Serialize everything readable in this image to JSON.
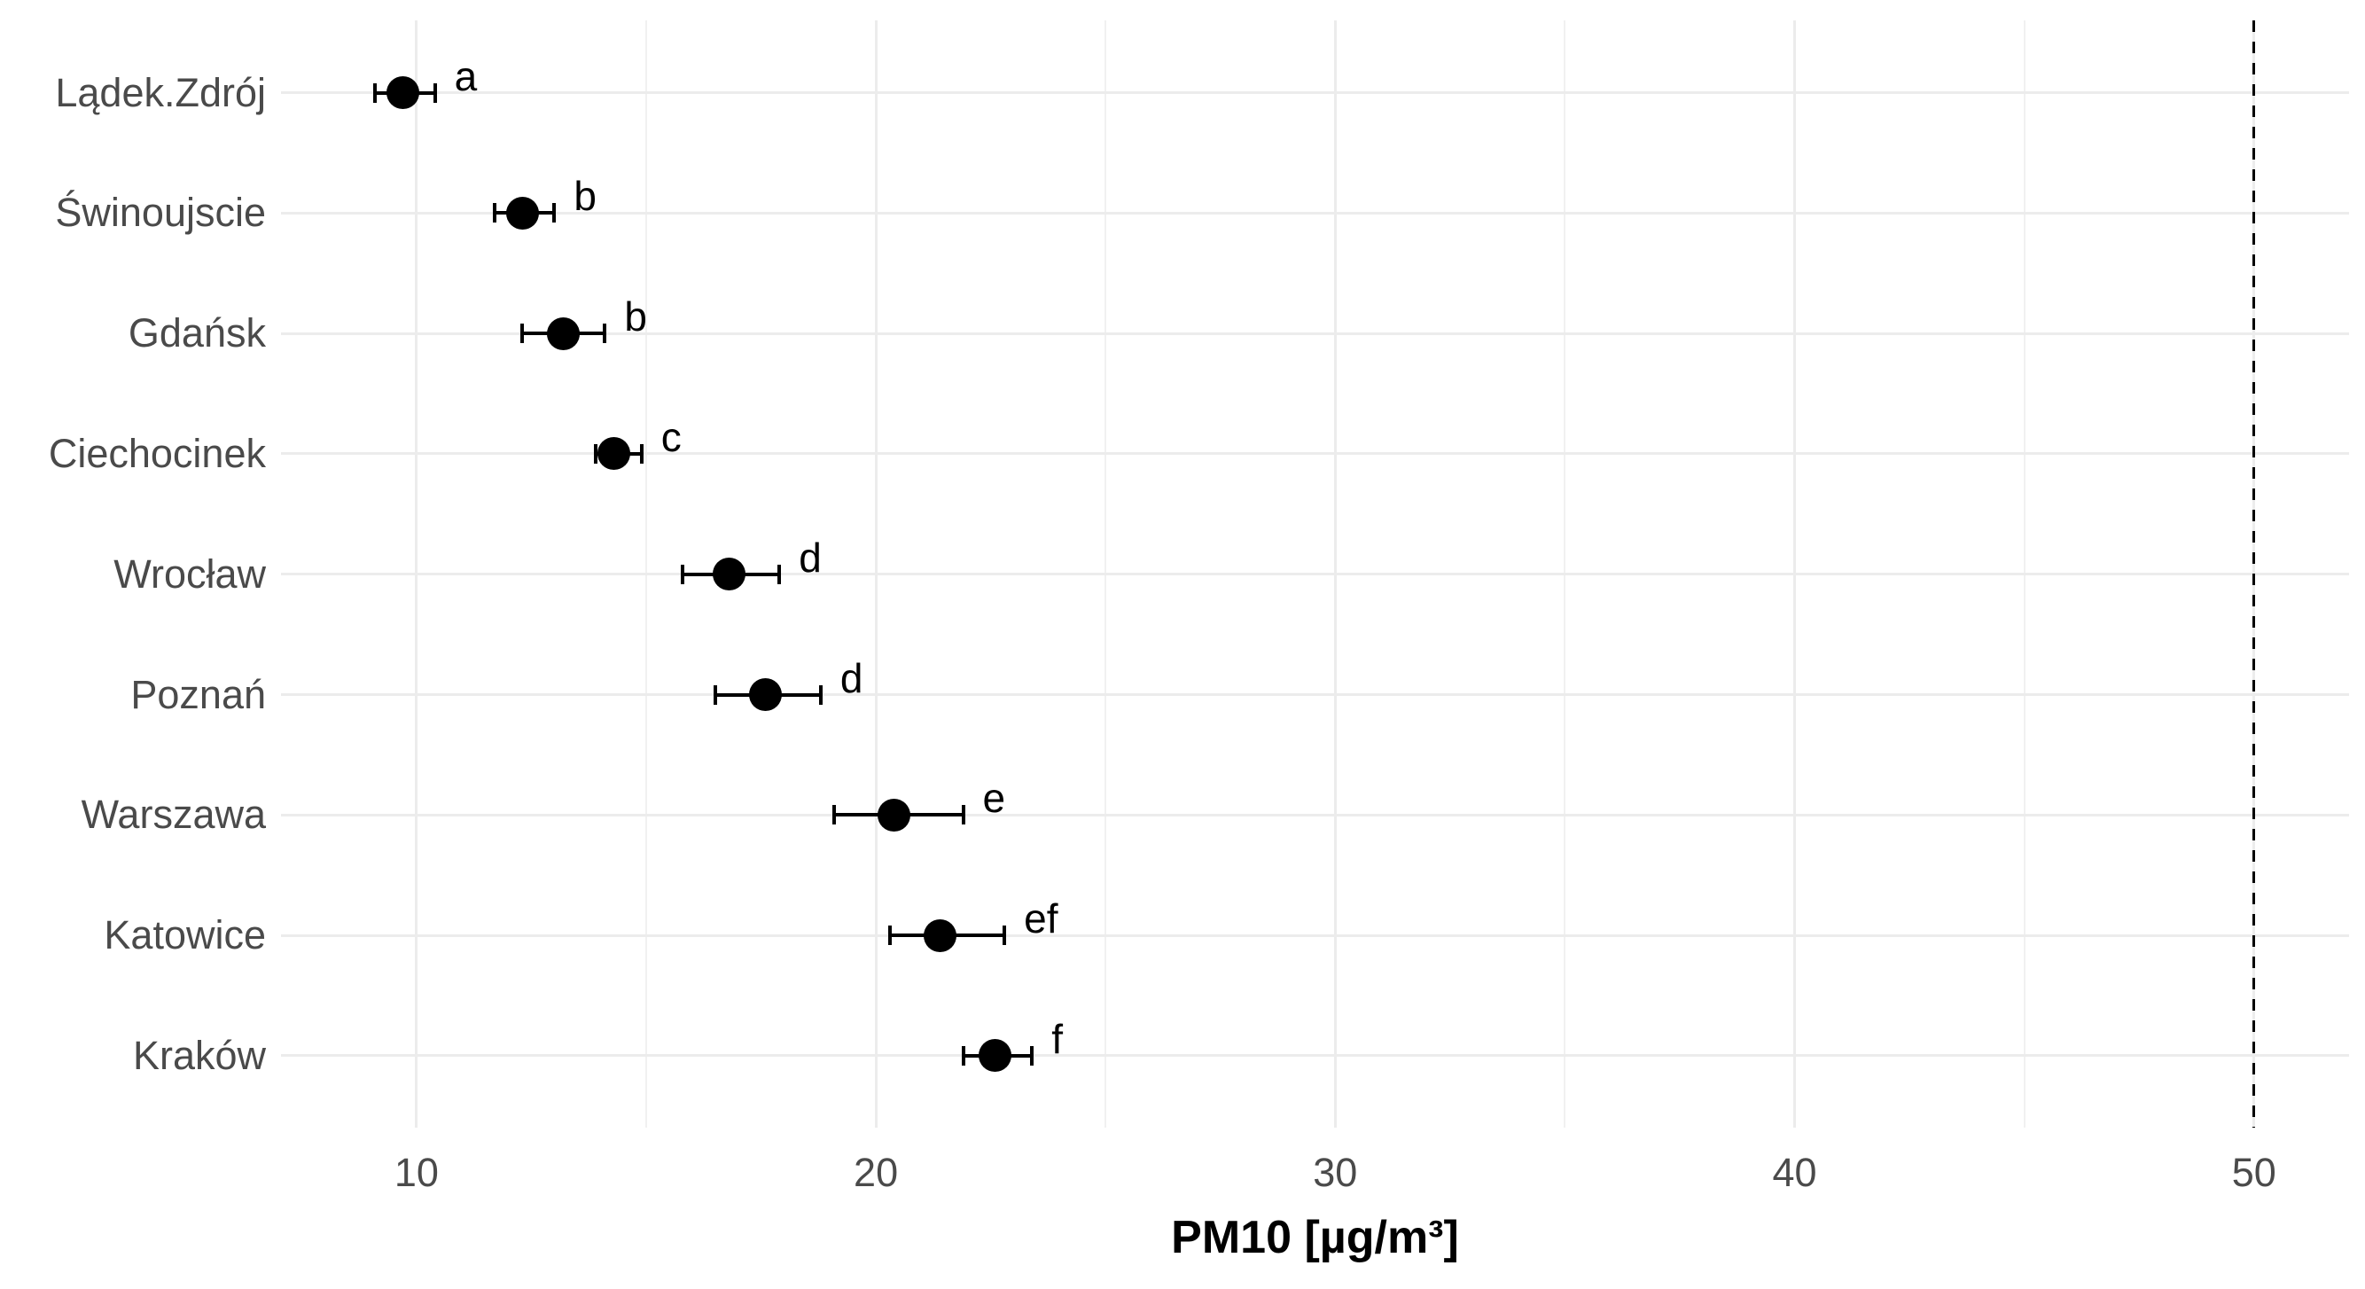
{
  "chart_data": {
    "type": "scatter",
    "title": "",
    "xlabel": "PM10 [µg/m³]",
    "ylabel": "",
    "xlim": [
      7.05,
      52.07
    ],
    "x_ticks": [
      10,
      20,
      30,
      40,
      50
    ],
    "x_tick_labels": [
      "10",
      "20",
      "30",
      "40",
      "50"
    ],
    "x_minor_gridlines": [
      15,
      25,
      35,
      45
    ],
    "grid": "on",
    "legend": "none",
    "reference_line": {
      "x": 50,
      "style": "dashed"
    },
    "categories": [
      "Lądek.Zdrój",
      "Świnoujscie",
      "Gdańsk",
      "Ciechocinek",
      "Wrocław",
      "Poznań",
      "Warszawa",
      "Katowice",
      "Kraków"
    ],
    "series": [
      {
        "city": "Lądek.Zdrój",
        "mean": 9.7,
        "ci_low": 9.1,
        "ci_high": 10.4,
        "letter": "a"
      },
      {
        "city": "Świnoujscie",
        "mean": 12.3,
        "ci_low": 11.7,
        "ci_high": 13.0,
        "letter": "b"
      },
      {
        "city": "Gdańsk",
        "mean": 13.2,
        "ci_low": 12.3,
        "ci_high": 14.1,
        "letter": "b"
      },
      {
        "city": "Ciechocinek",
        "mean": 14.3,
        "ci_low": 13.9,
        "ci_high": 14.9,
        "letter": "c"
      },
      {
        "city": "Wrocław",
        "mean": 16.8,
        "ci_low": 15.8,
        "ci_high": 17.9,
        "letter": "d"
      },
      {
        "city": "Poznań",
        "mean": 17.6,
        "ci_low": 16.5,
        "ci_high": 18.8,
        "letter": "d"
      },
      {
        "city": "Warszawa",
        "mean": 20.4,
        "ci_low": 19.1,
        "ci_high": 21.9,
        "letter": "e"
      },
      {
        "city": "Katowice",
        "mean": 21.4,
        "ci_low": 20.3,
        "ci_high": 22.8,
        "letter": "ef"
      },
      {
        "city": "Kraków",
        "mean": 22.6,
        "ci_low": 21.9,
        "ci_high": 23.4,
        "letter": "f"
      }
    ]
  },
  "colors": {
    "point": "#000000",
    "error_bar": "#000000",
    "letter_label": "#000000",
    "axis_text": "#4a4a4a",
    "axis_title": "#000000",
    "gridline_major": "#ececec",
    "gridline_minor": "#f1f1f1",
    "reference_line": "#000000",
    "background": "#ffffff"
  }
}
